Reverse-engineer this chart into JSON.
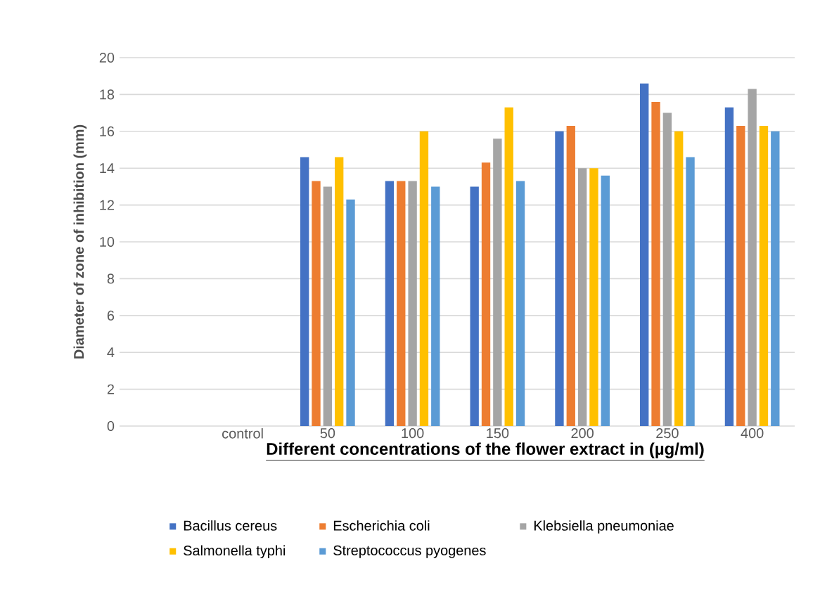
{
  "chart_data": {
    "type": "bar",
    "xlabel": "Different concentrations of the flower extract in (µg/ml)",
    "ylabel": "Diameter of zone of inhibition (mm)",
    "categories": [
      "control",
      "50",
      "100",
      "150",
      "200",
      "250",
      "400"
    ],
    "series": [
      {
        "name": "Bacillus cereus",
        "color": "#4472c4",
        "values": [
          0,
          14.6,
          13.3,
          13.0,
          16.0,
          18.6,
          17.3
        ]
      },
      {
        "name": "Escherichia coli",
        "color": "#ed7d31",
        "values": [
          0,
          13.3,
          13.3,
          14.3,
          16.3,
          17.6,
          16.3
        ]
      },
      {
        "name": "Klebsiella pneumoniae",
        "color": "#a5a5a5",
        "values": [
          0,
          13.0,
          13.3,
          15.6,
          14.0,
          17.0,
          18.3
        ]
      },
      {
        "name": "Salmonella typhi",
        "color": "#ffc000",
        "values": [
          0,
          14.6,
          16.0,
          17.3,
          14.0,
          16.0,
          16.3
        ]
      },
      {
        "name": "Streptococcus pyogenes",
        "color": "#5b9bd5",
        "values": [
          0,
          12.3,
          13.0,
          13.3,
          13.6,
          14.6,
          16.0
        ]
      }
    ],
    "ylim": [
      0,
      20
    ],
    "yticks": [
      0,
      2,
      4,
      6,
      8,
      10,
      12,
      14,
      16,
      18,
      20
    ],
    "grid": "y",
    "legend": "bottom"
  }
}
